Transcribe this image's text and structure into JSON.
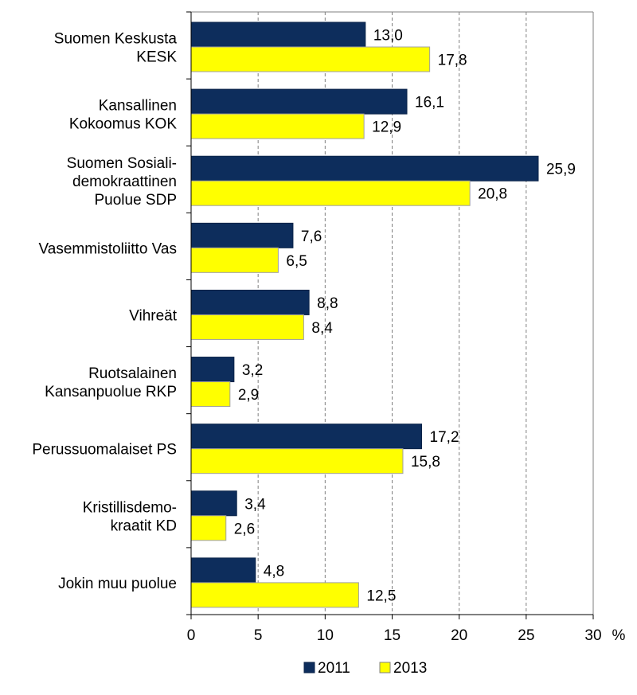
{
  "chart_data": {
    "type": "bar",
    "orientation": "horizontal",
    "categories": [
      [
        "Suomen Keskusta",
        "KESK"
      ],
      [
        "Kansallinen",
        "Kokoomus KOK"
      ],
      [
        "Suomen Sosiali-",
        "demokraattinen",
        "Puolue SDP"
      ],
      [
        "Vasemmistoliitto Vas"
      ],
      [
        "Vihreät"
      ],
      [
        "Ruotsalainen",
        "Kansanpuolue RKP"
      ],
      [
        "Perussuomalaiset PS"
      ],
      [
        "Kristillisdemo-",
        "kraatit KD"
      ],
      [
        "Jokin muu puolue"
      ]
    ],
    "series": [
      {
        "name": "2011",
        "color": "#0D2D5C",
        "values": [
          13.0,
          16.1,
          25.9,
          7.6,
          8.8,
          3.2,
          17.2,
          3.4,
          4.8
        ],
        "labels": [
          "13,0",
          "16,1",
          "25,9",
          "7,6",
          "8,8",
          "3,2",
          "17,2",
          "3,4",
          "4,8"
        ]
      },
      {
        "name": "2013",
        "color": "#FFFF00",
        "values": [
          17.8,
          12.9,
          20.8,
          6.5,
          8.4,
          2.9,
          15.8,
          2.6,
          12.5
        ],
        "labels": [
          "17,8",
          "12,9",
          "20,8",
          "6,5",
          "8,4",
          "2,9",
          "15,8",
          "2,6",
          "12,5"
        ]
      }
    ],
    "xlim": [
      0,
      30
    ],
    "xticks": [
      "0",
      "5",
      "10",
      "15",
      "20",
      "25",
      "30"
    ],
    "unit_label": "%",
    "grid": "vertical dashed",
    "legend_position": "bottom",
    "title": "",
    "xlabel": "",
    "ylabel": ""
  }
}
